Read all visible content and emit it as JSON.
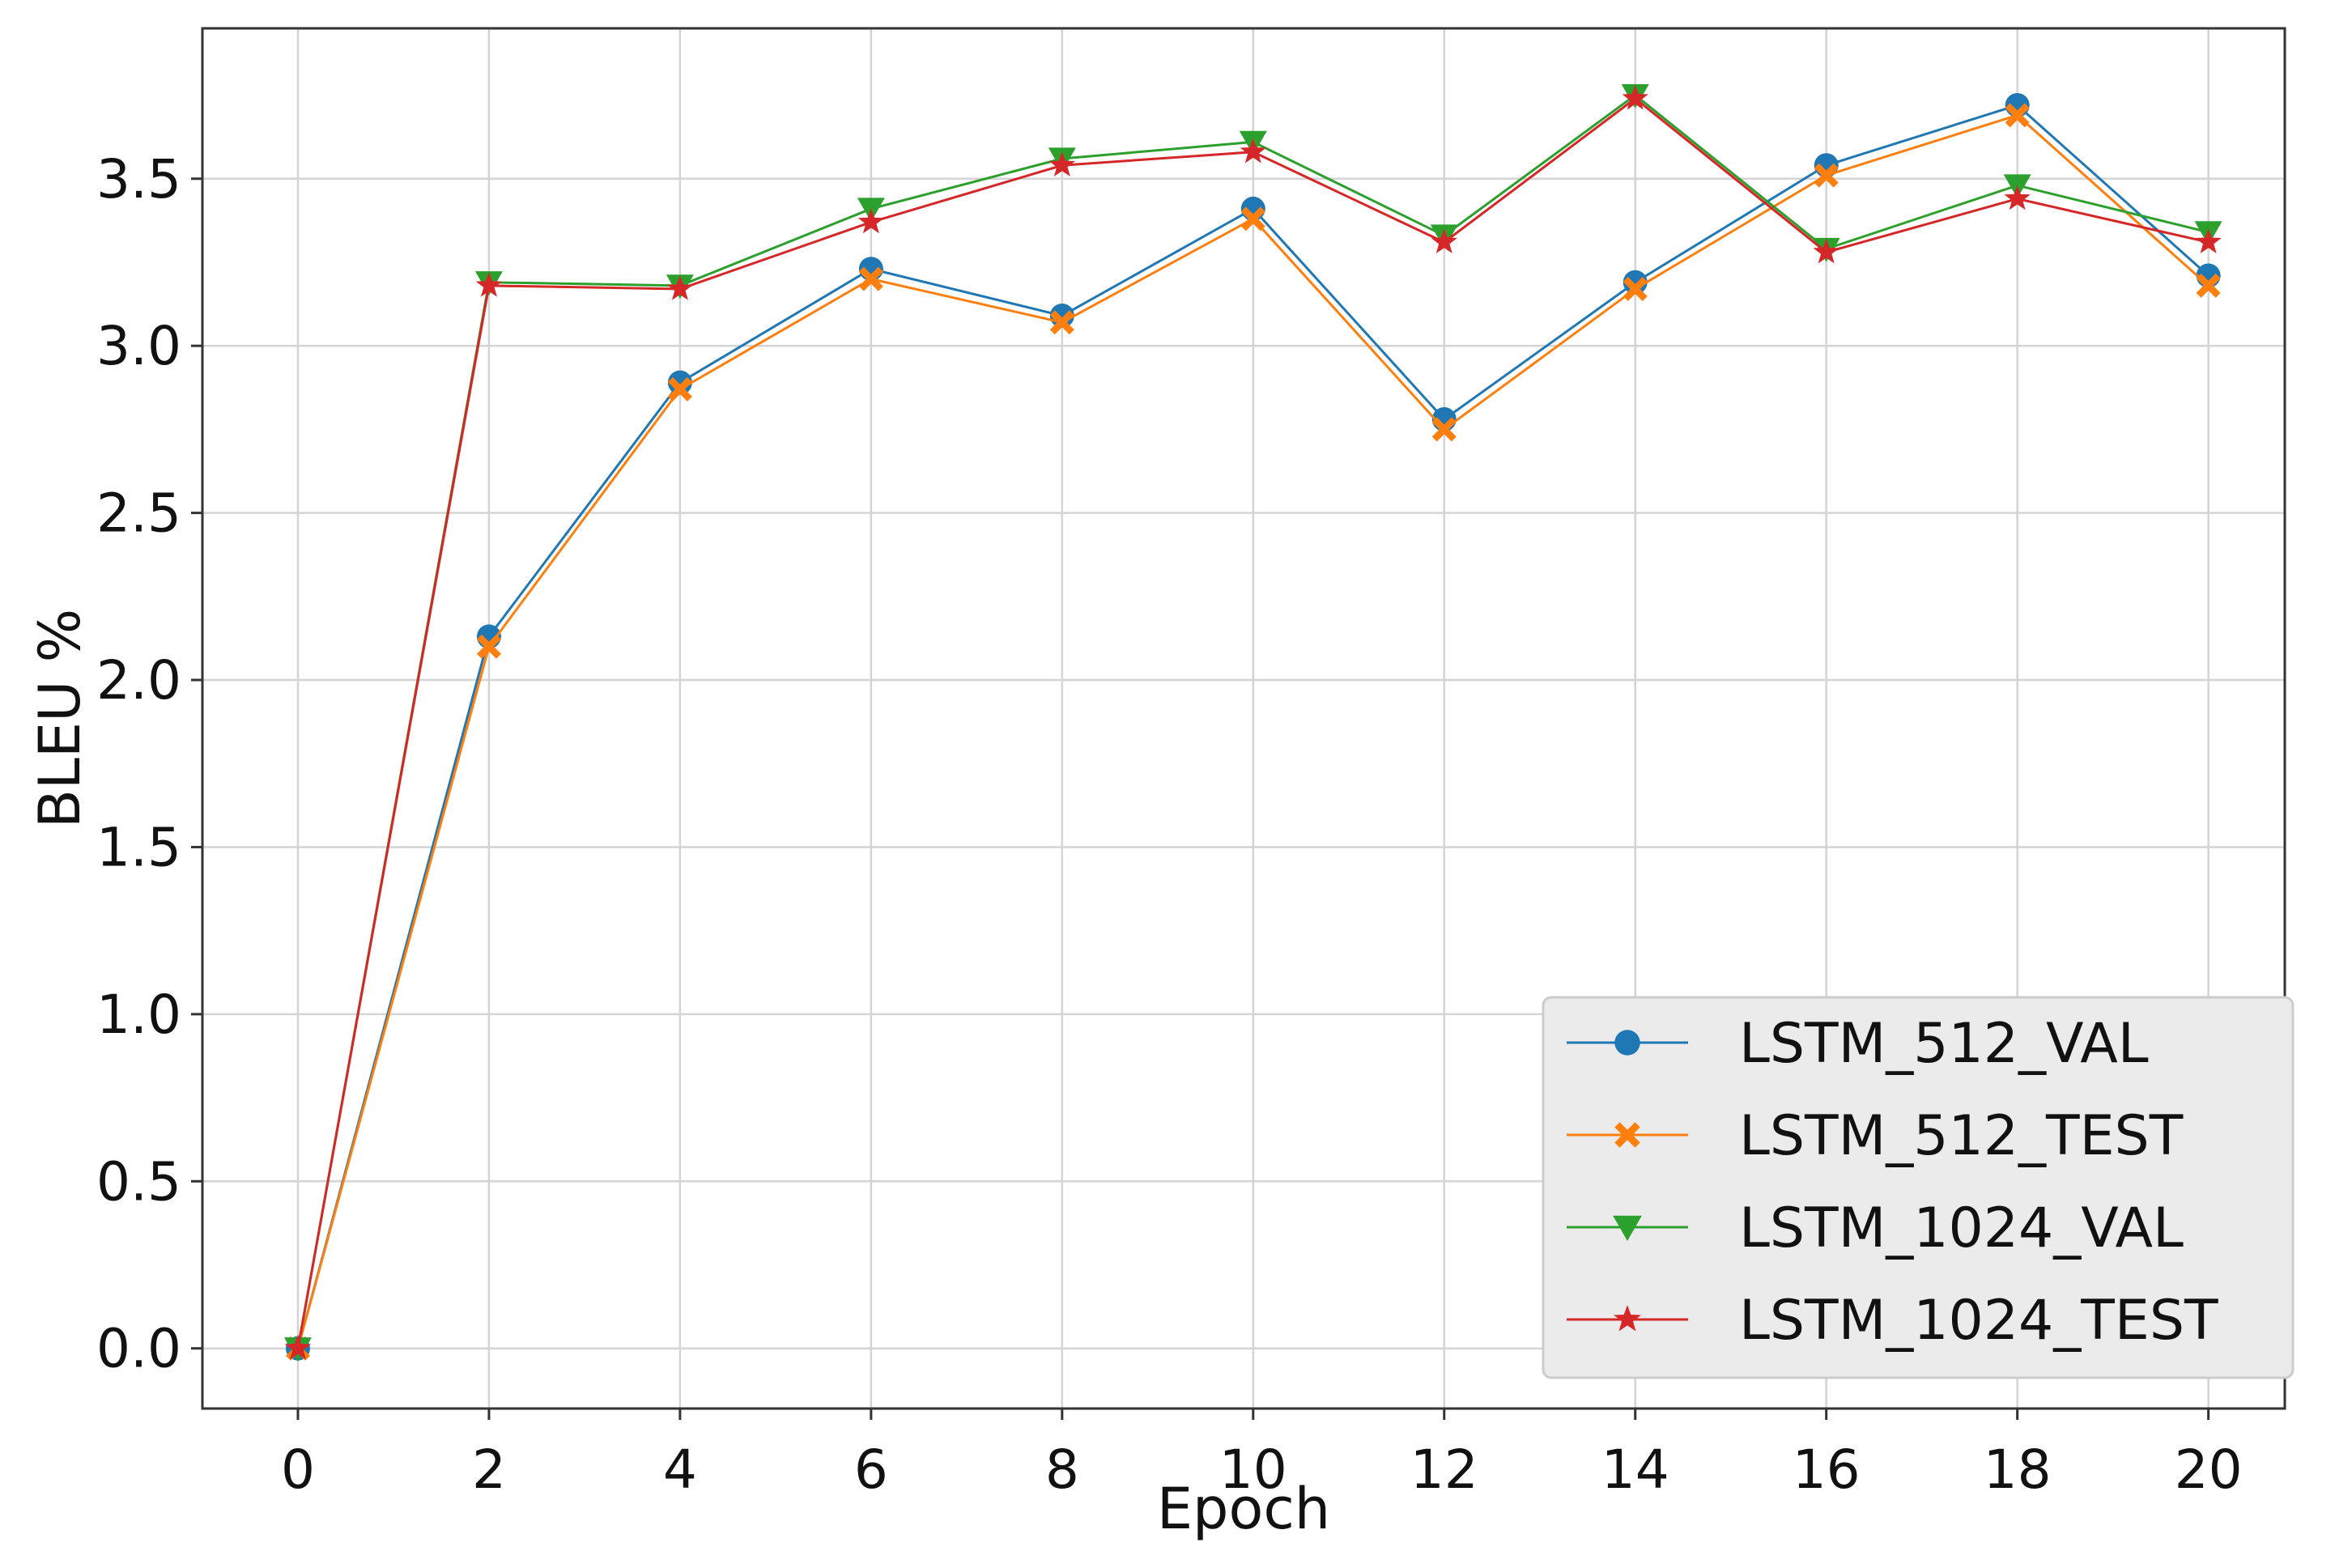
{
  "chart_data": {
    "type": "line",
    "title": "",
    "xlabel": "Epoch",
    "ylabel": "BLEU %",
    "xlim": [
      -1,
      20.8
    ],
    "ylim": [
      -0.18,
      3.95
    ],
    "x_ticks": [
      0,
      2,
      4,
      6,
      8,
      10,
      12,
      14,
      16,
      18,
      20
    ],
    "y_ticks": [
      0.0,
      0.5,
      1.0,
      1.5,
      2.0,
      2.5,
      3.0,
      3.5
    ],
    "y_tick_labels": [
      "0.0",
      "0.5",
      "1.0",
      "1.5",
      "2.0",
      "2.5",
      "3.0",
      "3.5"
    ],
    "grid": true,
    "legend_position": "lower-right",
    "x": [
      0,
      2,
      4,
      6,
      8,
      10,
      12,
      14,
      16,
      18,
      20
    ],
    "series": [
      {
        "name": "LSTM_512_VAL",
        "color": "#1f77b4",
        "marker": "circle",
        "values": [
          0.0,
          2.13,
          2.89,
          3.23,
          3.09,
          3.41,
          2.78,
          3.19,
          3.54,
          3.72,
          3.21
        ]
      },
      {
        "name": "LSTM_512_TEST",
        "color": "#ff7f0e",
        "marker": "x",
        "values": [
          0.0,
          2.1,
          2.87,
          3.2,
          3.07,
          3.38,
          2.75,
          3.17,
          3.51,
          3.69,
          3.18
        ]
      },
      {
        "name": "LSTM_1024_VAL",
        "color": "#2ca02c",
        "marker": "triangle-down",
        "values": [
          0.0,
          3.19,
          3.18,
          3.41,
          3.56,
          3.61,
          3.33,
          3.75,
          3.29,
          3.48,
          3.34
        ]
      },
      {
        "name": "LSTM_1024_TEST",
        "color": "#d62728",
        "marker": "star",
        "values": [
          0.0,
          3.18,
          3.17,
          3.37,
          3.54,
          3.58,
          3.31,
          3.74,
          3.28,
          3.44,
          3.31
        ]
      }
    ]
  }
}
